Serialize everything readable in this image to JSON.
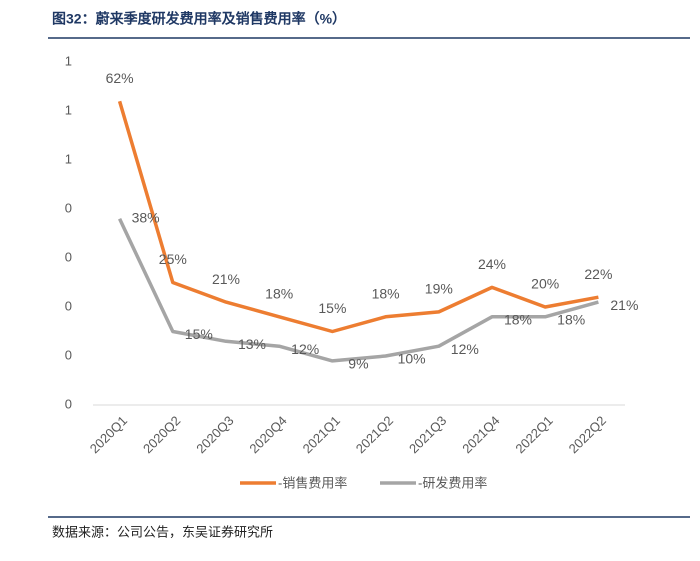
{
  "chart_data": {
    "type": "line",
    "title": "图32：蔚来季度研发费用率及销售费用率（%）",
    "source": "数据来源：公司公告，东吴证券研究所",
    "categories": [
      "2020Q1",
      "2020Q2",
      "2020Q3",
      "2020Q4",
      "2021Q1",
      "2021Q2",
      "2021Q3",
      "2021Q4",
      "2022Q1",
      "2022Q2"
    ],
    "series": [
      {
        "name": "-销售费用率",
        "color": "#ed7d31",
        "values": [
          0.62,
          0.25,
          0.21,
          0.18,
          0.15,
          0.18,
          0.19,
          0.24,
          0.2,
          0.22
        ],
        "value_labels": [
          "62%",
          "25%",
          "21%",
          "18%",
          "15%",
          "18%",
          "19%",
          "24%",
          "20%",
          "22%"
        ]
      },
      {
        "name": "-研发费用率",
        "color": "#a5a5a5",
        "values": [
          0.38,
          0.15,
          0.13,
          0.12,
          0.09,
          0.1,
          0.12,
          0.18,
          0.18,
          0.21
        ],
        "value_labels": [
          "38%",
          "15%",
          "13%",
          "12%",
          "9%",
          "10%",
          "12%",
          "18%",
          "18%",
          "21%"
        ]
      }
    ],
    "ylim": [
      0,
      0.7
    ],
    "yticks": [
      0,
      {
        "value": 0.1,
        "label": "0"
      },
      {
        "value": 0.2,
        "label": "0"
      },
      {
        "value": 0.3,
        "label": "0"
      },
      {
        "value": 0.4,
        "label": "0"
      },
      {
        "value": 0.5,
        "label": "1"
      },
      {
        "value": 0.6,
        "label": "1"
      },
      {
        "value": 0.7,
        "label": "1"
      }
    ],
    "legend": "bottom"
  }
}
